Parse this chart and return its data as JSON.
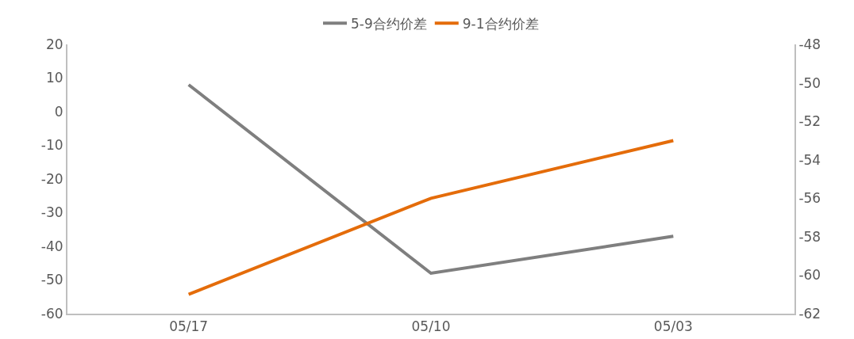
{
  "chart_data": {
    "type": "line",
    "categories": [
      "05/17",
      "05/10",
      "05/03"
    ],
    "series": [
      {
        "name": "5-9合约价差",
        "color": "#7f7f7f",
        "values": [
          8,
          -48,
          -37
        ]
      },
      {
        "name": "9-1合约价差",
        "color": "#e46c0a",
        "values": [
          -61,
          -56,
          -53
        ],
        "axis": "y2"
      }
    ],
    "ylim": [
      -60,
      20
    ],
    "yticks": [
      -60,
      -50,
      -40,
      -30,
      -20,
      -10,
      0,
      10,
      20
    ],
    "y2lim": [
      -62,
      -48
    ],
    "y2ticks": [
      -62,
      -60,
      -58,
      -56,
      -54,
      -52,
      -50,
      -48
    ],
    "grid": false,
    "legend": "top",
    "marker": "none",
    "line_style": "solid"
  }
}
